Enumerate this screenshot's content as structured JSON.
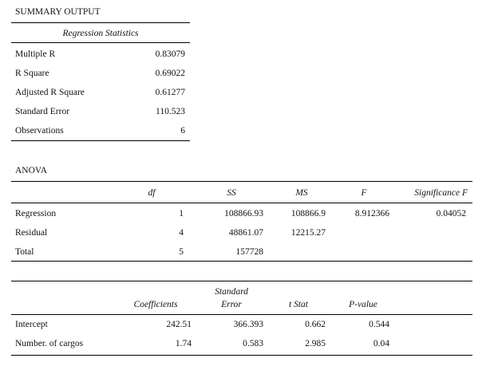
{
  "summary": {
    "title": "SUMMARY OUTPUT",
    "reg_stats_header": "Regression Statistics",
    "rows": [
      {
        "label": "Multiple R",
        "value": "0.83079"
      },
      {
        "label": "R Square",
        "value": "0.69022"
      },
      {
        "label": "Adjusted R Square",
        "value": "0.61277"
      },
      {
        "label": "Standard Error",
        "value": "110.523"
      },
      {
        "label": "Observations",
        "value": "6"
      }
    ]
  },
  "anova": {
    "title": "ANOVA",
    "headers": {
      "df": "df",
      "ss": "SS",
      "ms": "MS",
      "f": "F",
      "sig": "Significance F"
    },
    "rows": [
      {
        "label": "Regression",
        "df": "1",
        "ss": "108866.93",
        "ms": "108866.9",
        "f": "8.912366",
        "sig": "0.04052"
      },
      {
        "label": "Residual",
        "df": "4",
        "ss": "48861.07",
        "ms": "12215.27",
        "f": "",
        "sig": ""
      },
      {
        "label": "Total",
        "df": "5",
        "ss": "157728",
        "ms": "",
        "f": "",
        "sig": ""
      }
    ]
  },
  "coef": {
    "headers": {
      "coef": "Coefficients",
      "se_line1": "Standard",
      "se_line2": "Error",
      "t": "t Stat",
      "p": "P-value"
    },
    "rows": [
      {
        "label": "Intercept",
        "coef": "242.51",
        "se": "366.393",
        "t": "0.662",
        "p": "0.544"
      },
      {
        "label": "Number. of cargos",
        "coef": "1.74",
        "se": "0.583",
        "t": "2.985",
        "p": "0.04"
      }
    ]
  }
}
